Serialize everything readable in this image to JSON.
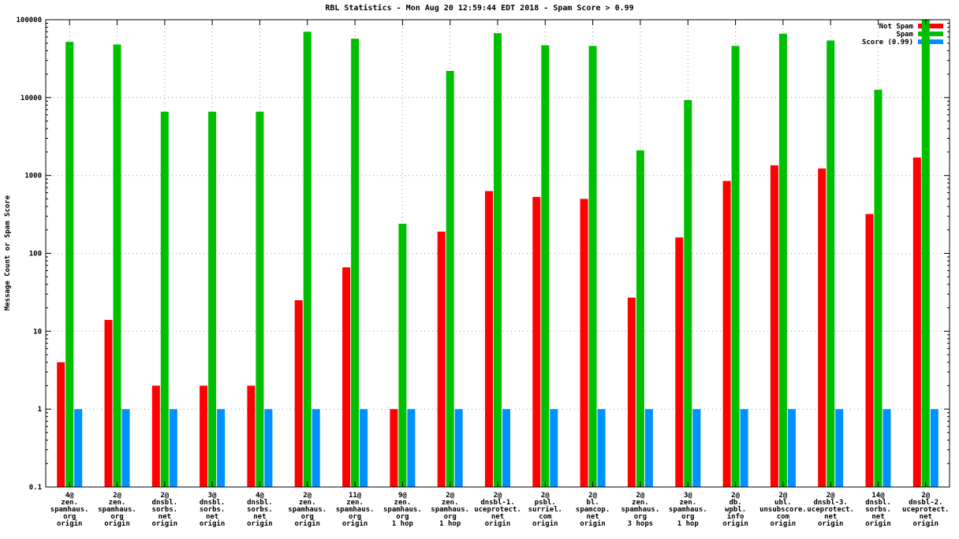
{
  "title": "RBL Statistics - Mon Aug 20 12:59:44 EDT 2018 - Spam Score > 0.99",
  "ylabel": "Message Count or Spam Score",
  "legend": {
    "position": "top-right",
    "items": [
      {
        "label": "Not Spam",
        "color": "#ff0000"
      },
      {
        "label": "Spam",
        "color": "#00bf00"
      },
      {
        "label": "Score (0.99)",
        "color": "#0090ff"
      }
    ]
  },
  "chart_data": {
    "type": "bar",
    "scale": "log",
    "title": "RBL Statistics - Mon Aug 20 12:59:44 EDT 2018 - Spam Score > 0.99",
    "xlabel": "",
    "ylabel": "Message Count or Spam Score",
    "ylim": [
      0.1,
      100000
    ],
    "ytick_labels": [
      "0.1",
      "1",
      "10",
      "100",
      "1000",
      "10000",
      "100000"
    ],
    "grid": true,
    "legend_position": "top-right",
    "categories": [
      [
        "4@",
        "zen.",
        "spamhaus.",
        "org",
        "origin"
      ],
      [
        "2@",
        "zen.",
        "spamhaus.",
        "org",
        "origin"
      ],
      [
        "2@",
        "dnsbl.",
        "sorbs.",
        "net",
        "origin"
      ],
      [
        "3@",
        "dnsbl.",
        "sorbs.",
        "net",
        "origin"
      ],
      [
        "4@",
        "dnsbl.",
        "sorbs.",
        "net",
        "origin"
      ],
      [
        "2@",
        "zen.",
        "spamhaus.",
        "org",
        "origin"
      ],
      [
        "11@",
        "zen.",
        "spamhaus.",
        "org",
        "origin"
      ],
      [
        "9@",
        "zen.",
        "spamhaus.",
        "org",
        "1 hop"
      ],
      [
        "2@",
        "zen.",
        "spamhaus.",
        "org",
        "1 hop"
      ],
      [
        "2@",
        "dnsbl-1.",
        "uceprotect.",
        "net",
        "origin"
      ],
      [
        "2@",
        "psbl.",
        "surriel.",
        "com",
        "origin"
      ],
      [
        "2@",
        "bl.",
        "spamcop.",
        "net",
        "origin"
      ],
      [
        "2@",
        "zen.",
        "spamhaus.",
        "org",
        "3 hops"
      ],
      [
        "3@",
        "zen.",
        "spamhaus.",
        "org",
        "1 hop"
      ],
      [
        "2@",
        "db.",
        "wpbl.",
        "info",
        "origin"
      ],
      [
        "2@",
        "ubl.",
        "unsubscore.",
        "com",
        "origin"
      ],
      [
        "2@",
        "dnsbl-3.",
        "uceprotect.",
        "net",
        "origin"
      ],
      [
        "14@",
        "dnsbl.",
        "sorbs.",
        "net",
        "origin"
      ],
      [
        "2@",
        "dnsbl-2.",
        "uceprotect.",
        "net",
        "origin"
      ]
    ],
    "series": [
      {
        "name": "Not Spam",
        "color": "#ff0000",
        "values": [
          4,
          14,
          2,
          2,
          2,
          25,
          66,
          1,
          190,
          630,
          530,
          500,
          27,
          160,
          850,
          1350,
          1230,
          320,
          1700
        ]
      },
      {
        "name": "Spam",
        "color": "#00bf00",
        "values": [
          52000,
          48000,
          6600,
          6600,
          6600,
          70000,
          57000,
          240,
          22000,
          67000,
          47000,
          46000,
          2100,
          9300,
          46000,
          66000,
          54000,
          12600,
          100000
        ]
      },
      {
        "name": "Score (0.99)",
        "color": "#0090ff",
        "values": [
          1,
          1,
          1,
          1,
          1,
          1,
          1,
          1,
          1,
          1,
          1,
          1,
          1,
          1,
          1,
          1,
          1,
          1,
          1
        ]
      }
    ]
  }
}
